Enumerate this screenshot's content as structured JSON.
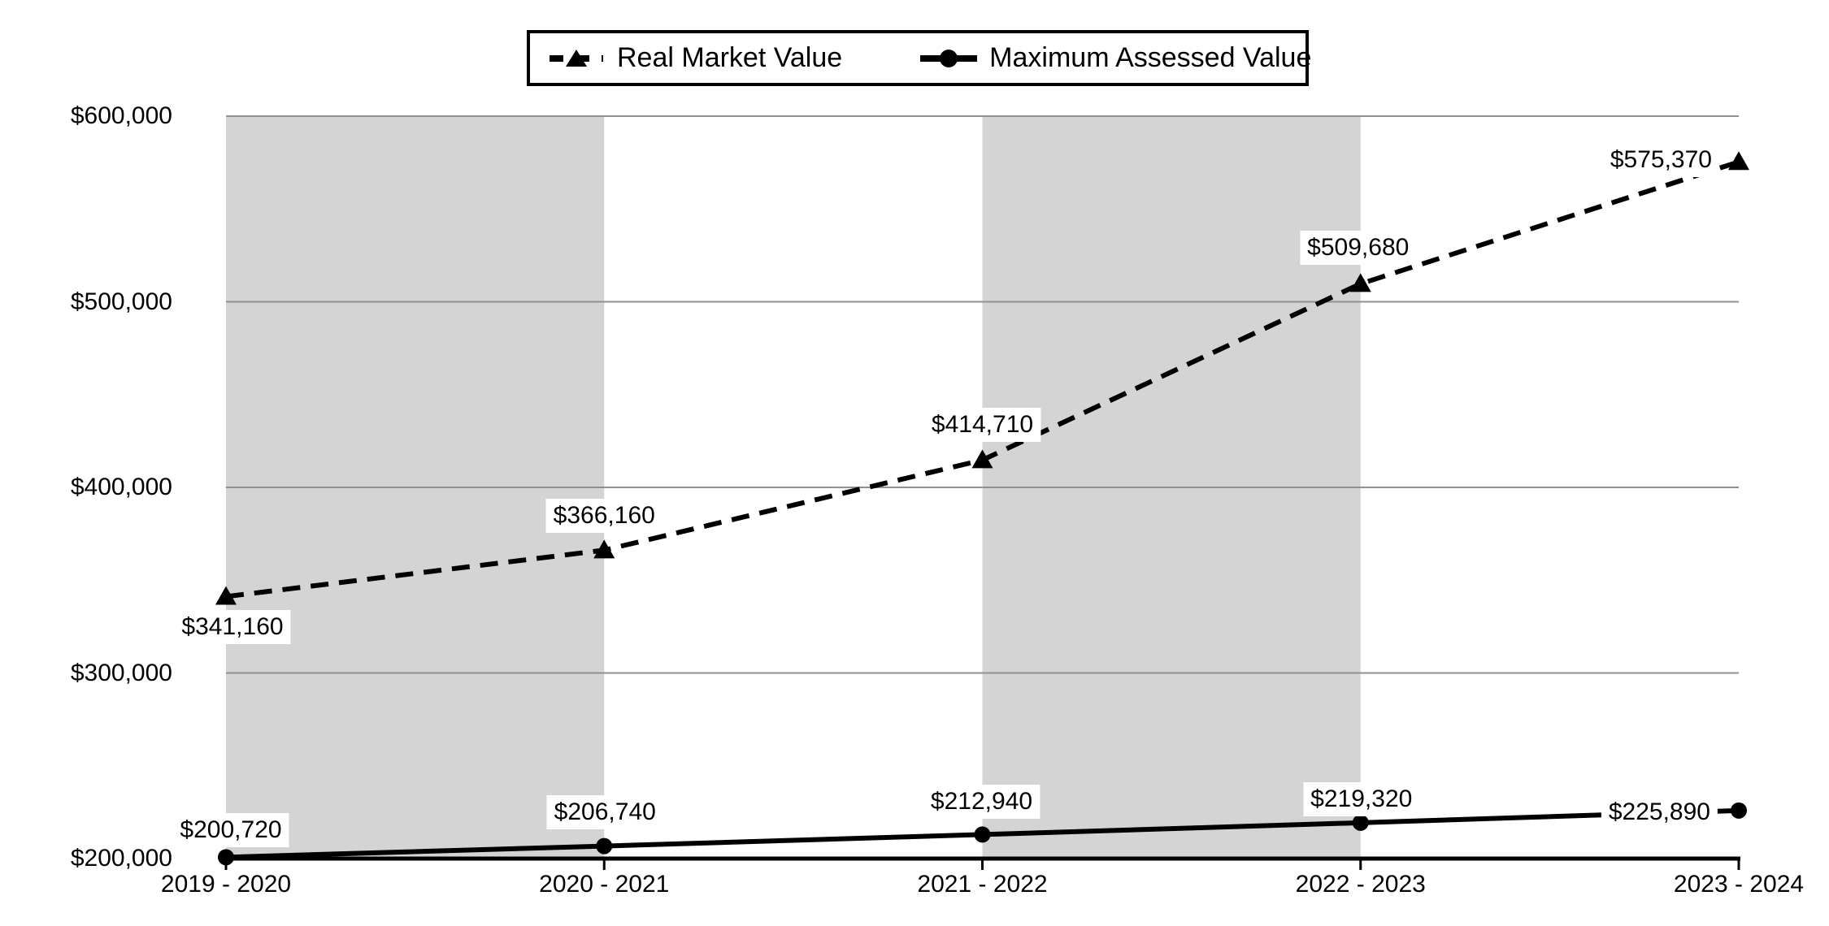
{
  "chart_data": {
    "type": "line",
    "title": "",
    "categories": [
      "2019 - 2020",
      "2020 - 2021",
      "2021 - 2022",
      "2022 - 2023",
      "2023 - 2024"
    ],
    "series": [
      {
        "name": "Real Market Value",
        "style": "dashed",
        "marker": "triangle",
        "color": "#000000",
        "values": [
          341160,
          366160,
          414710,
          509680,
          575370
        ],
        "labels": [
          "$341,160",
          "$366,160",
          "$414,710",
          "$509,680",
          "$575,370"
        ]
      },
      {
        "name": "Maximum Assessed Value",
        "style": "solid",
        "marker": "circle",
        "color": "#000000",
        "values": [
          200720,
          206740,
          212940,
          219320,
          225890
        ],
        "labels": [
          "$200,720",
          "$206,740",
          "$212,940",
          "$219,320",
          "$225,890"
        ]
      }
    ],
    "y_ticks": [
      "$600,000",
      "$500,000",
      "$400,000",
      "$300,000",
      "$200,000"
    ],
    "y_tick_values": [
      600000,
      500000,
      400000,
      300000,
      200000
    ],
    "ylim": [
      200000,
      600000
    ],
    "grid": true,
    "legend_position": "top",
    "shaded_intervals": [
      [
        0,
        1
      ],
      [
        2,
        3
      ]
    ],
    "colors": {
      "band": "#d4d4d4",
      "grid": "#909090",
      "axis": "#000000",
      "label_bg": "#ffffff"
    }
  }
}
